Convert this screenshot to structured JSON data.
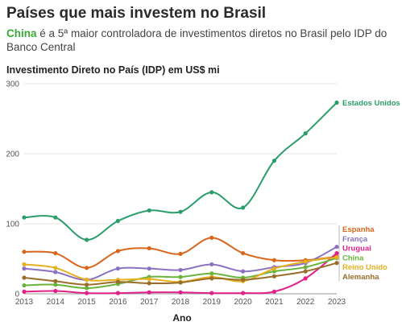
{
  "header": {
    "title": "Países que mais investem no Brasil",
    "subtitle_highlight": "China",
    "subtitle_rest": " é a 5ª maior controladora de investimentos diretos no Brasil pelo IDP do Banco Central"
  },
  "chart_data": {
    "type": "line",
    "title": "Investimento Direto no País (IDP) em US$ mi",
    "xlabel": "Ano",
    "ylabel": "",
    "x": [
      2013,
      2014,
      2015,
      2016,
      2017,
      2018,
      2019,
      2020,
      2021,
      2022,
      2023
    ],
    "ylim": [
      0,
      300
    ],
    "yticks": [
      0,
      100,
      200,
      300
    ],
    "grid": true,
    "series": [
      {
        "name": "Estados Unidos",
        "color": "#2a9d6b",
        "values": [
          109,
          109,
          77,
          104,
          119,
          117,
          145,
          123,
          190,
          229,
          273
        ]
      },
      {
        "name": "Espanha",
        "color": "#d9661c",
        "values": [
          60,
          58,
          37,
          61,
          65,
          57,
          80,
          58,
          48,
          48,
          53
        ]
      },
      {
        "name": "França",
        "color": "#8a72c0",
        "values": [
          36,
          31,
          20,
          36,
          36,
          34,
          42,
          32,
          38,
          44,
          67
        ]
      },
      {
        "name": "Uruguai",
        "color": "#e0218a",
        "values": [
          3,
          4,
          1,
          1,
          2,
          2,
          1,
          1,
          3,
          22,
          58
        ]
      },
      {
        "name": "China",
        "color": "#6ab43e",
        "values": [
          12,
          13,
          8,
          14,
          24,
          24,
          29,
          23,
          32,
          38,
          51
        ]
      },
      {
        "name": "Reino Unido",
        "color": "#e6b020",
        "values": [
          42,
          37,
          20,
          20,
          21,
          17,
          24,
          18,
          36,
          46,
          52
        ]
      },
      {
        "name": "Alemanha",
        "color": "#9a6e2a",
        "values": [
          23,
          18,
          13,
          17,
          15,
          16,
          22,
          20,
          25,
          32,
          44
        ]
      }
    ]
  }
}
